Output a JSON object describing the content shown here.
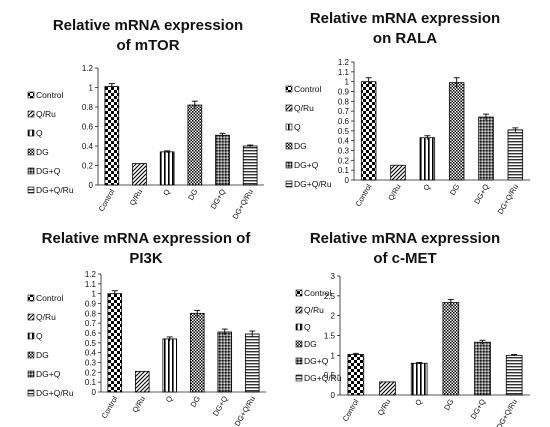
{
  "chart_data": [
    {
      "type": "bar",
      "title": [
        "Relative mRNA expression",
        "of mTOR"
      ],
      "categories": [
        "Control",
        "Q/Ru",
        "Q",
        "DG",
        "DG+Q",
        "DG+Q/Ru"
      ],
      "values": [
        1.01,
        0.22,
        0.34,
        0.82,
        0.51,
        0.4
      ],
      "errors": [
        0.03,
        0.0,
        0.01,
        0.04,
        0.02,
        0.01
      ],
      "ylim": [
        0,
        1.2
      ],
      "yticks": [
        "0",
        "0.2",
        "0.4",
        "0.6",
        "0.8",
        "1",
        "1.2"
      ],
      "legend": [
        "Control",
        "Q/Ru",
        "Q",
        "DG",
        "DG+Q",
        "DG+Q/Ru"
      ]
    },
    {
      "type": "bar",
      "title": [
        "Relative mRNA expression",
        "on RALA"
      ],
      "categories": [
        "Control",
        "Q/Ru",
        "Q",
        "DG",
        "DG+Q",
        "DG+Q/Ru"
      ],
      "values": [
        1.0,
        0.15,
        0.43,
        0.99,
        0.64,
        0.51
      ],
      "errors": [
        0.04,
        0.0,
        0.02,
        0.05,
        0.03,
        0.02
      ],
      "ylim": [
        0,
        1.2
      ],
      "yticks": [
        "0",
        "0.1",
        "0.2",
        "0.3",
        "0.4",
        "0.5",
        "0.6",
        "0.7",
        "0.8",
        "0.9",
        "1",
        "1.1",
        "1.2"
      ],
      "legend": [
        "Control",
        "Q/Ru",
        "Q",
        "DG",
        "DG+Q",
        "DG+Q/Ru"
      ]
    },
    {
      "type": "bar",
      "title": [
        "Relative mRNA expression of",
        "PI3K"
      ],
      "categories": [
        "Control",
        "Q/Ru",
        "Q",
        "DG",
        "DG+Q",
        "DG+Q/Ru"
      ],
      "values": [
        1.0,
        0.21,
        0.54,
        0.8,
        0.61,
        0.59
      ],
      "errors": [
        0.03,
        0.0,
        0.02,
        0.03,
        0.03,
        0.03
      ],
      "ylim": [
        0,
        1.2
      ],
      "yticks": [
        "0",
        "0.1",
        "0.2",
        "0.3",
        "0.4",
        "0.5",
        "0.6",
        "0.7",
        "0.8",
        "0.9",
        "1",
        "1.1",
        "1.2"
      ],
      "legend": [
        "Control",
        "Q/Ru",
        "Q",
        "DG",
        "DG+Q",
        "DG+Q/Ru"
      ]
    },
    {
      "type": "bar",
      "title": [
        "Relative mRNA expression",
        "of c-MET"
      ],
      "categories": [
        "Control",
        "Q/Ru",
        "Q",
        "DG",
        "DG+Q",
        "DG+Q/Ru"
      ],
      "values": [
        1.02,
        0.33,
        0.8,
        2.33,
        1.33,
        1.0
      ],
      "errors": [
        0.03,
        0.0,
        0.02,
        0.08,
        0.05,
        0.02
      ],
      "ylim": [
        0,
        3
      ],
      "yticks": [
        "0",
        "0.5",
        "1",
        "1.5",
        "2",
        "2.5",
        "3"
      ],
      "legend": [
        "Control",
        "Q/Ru",
        "Q",
        "DG",
        "DG+Q",
        "DG+Q/Ru"
      ]
    }
  ]
}
